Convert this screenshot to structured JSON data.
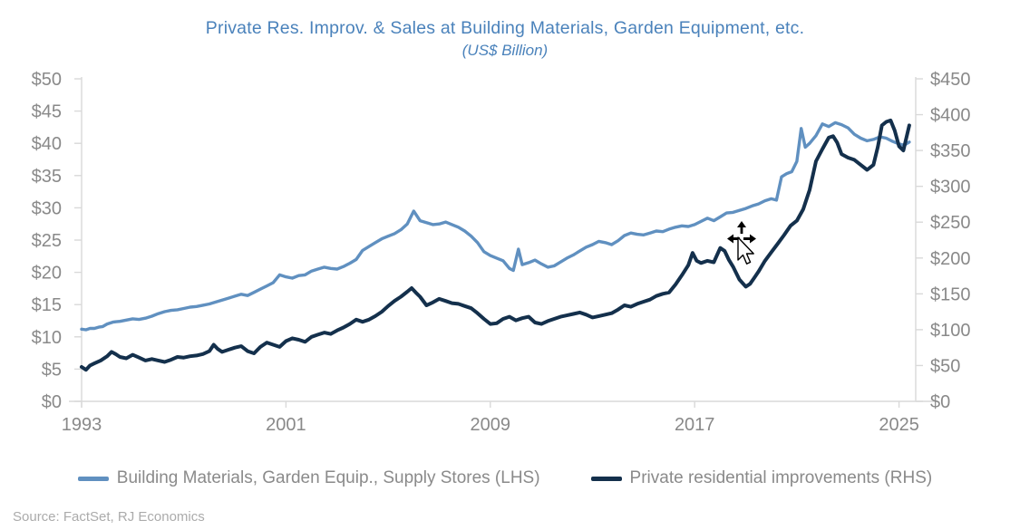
{
  "chart": {
    "title": "Private Res. Improv. & Sales at Building Materials, Garden Equipment, etc.",
    "subtitle": "(US$ Billion)",
    "source": "Source: FactSet, RJ Economics"
  },
  "colors": {
    "title_text": "#4A82BB",
    "axis_line": "#D9D9D9",
    "axis_label": "#898989",
    "legend_text": "#8A8A8A",
    "source_text": "#ABABAB",
    "series_lhs": "#6090C0",
    "series_rhs": "#14304C",
    "background": "#FFFFFF"
  },
  "cursor": {
    "kind": "move-drag-pointer",
    "visible": true
  },
  "chart_data": {
    "type": "line",
    "title": "Private Res. Improv. & Sales at Building Materials, Garden Equipment, etc.",
    "subtitle": "(US$ Billion)",
    "grid": "off",
    "legend_position": "bottom",
    "x_axis": {
      "tick_labels": [
        "1993",
        "2001",
        "2009",
        "2017",
        "2025"
      ],
      "tick_years": [
        1993,
        2001,
        2009,
        2017,
        2025
      ],
      "range": [
        1993,
        2025.7
      ]
    },
    "y_axis_left": {
      "tick_labels": [
        "$0",
        "$5",
        "$10",
        "$15",
        "$20",
        "$25",
        "$30",
        "$35",
        "$40",
        "$45",
        "$50"
      ],
      "tick_values": [
        0,
        5,
        10,
        15,
        20,
        25,
        30,
        35,
        40,
        45,
        50
      ],
      "range": [
        0,
        50
      ]
    },
    "y_axis_right": {
      "tick_labels": [
        "$0",
        "$50",
        "$100",
        "$150",
        "$200",
        "$250",
        "$300",
        "$350",
        "$400",
        "$450"
      ],
      "tick_values": [
        0,
        50,
        100,
        150,
        200,
        250,
        300,
        350,
        400,
        450
      ],
      "range": [
        0,
        450
      ]
    },
    "series": [
      {
        "name": "Building Materials, Garden Equip., Supply Stores (LHS)",
        "axis": "left",
        "color": "#6090C0",
        "points": [
          [
            1993.0,
            11.2
          ],
          [
            1993.17,
            11.1
          ],
          [
            1993.33,
            11.3
          ],
          [
            1993.5,
            11.3
          ],
          [
            1993.67,
            11.5
          ],
          [
            1993.83,
            11.6
          ],
          [
            1994.0,
            12.0
          ],
          [
            1994.25,
            12.3
          ],
          [
            1994.5,
            12.4
          ],
          [
            1994.75,
            12.6
          ],
          [
            1995.0,
            12.8
          ],
          [
            1995.25,
            12.7
          ],
          [
            1995.5,
            12.9
          ],
          [
            1995.75,
            13.2
          ],
          [
            1996.0,
            13.6
          ],
          [
            1996.25,
            13.9
          ],
          [
            1996.5,
            14.1
          ],
          [
            1996.75,
            14.2
          ],
          [
            1997.0,
            14.4
          ],
          [
            1997.25,
            14.6
          ],
          [
            1997.5,
            14.7
          ],
          [
            1997.75,
            14.9
          ],
          [
            1998.0,
            15.1
          ],
          [
            1998.25,
            15.4
          ],
          [
            1998.5,
            15.7
          ],
          [
            1998.75,
            16.0
          ],
          [
            1999.0,
            16.3
          ],
          [
            1999.25,
            16.6
          ],
          [
            1999.5,
            16.4
          ],
          [
            1999.75,
            16.9
          ],
          [
            2000.0,
            17.4
          ],
          [
            2000.25,
            17.9
          ],
          [
            2000.5,
            18.4
          ],
          [
            2000.75,
            19.6
          ],
          [
            2001.0,
            19.3
          ],
          [
            2001.25,
            19.1
          ],
          [
            2001.5,
            19.5
          ],
          [
            2001.75,
            19.6
          ],
          [
            2002.0,
            20.2
          ],
          [
            2002.25,
            20.5
          ],
          [
            2002.5,
            20.8
          ],
          [
            2002.75,
            20.6
          ],
          [
            2003.0,
            20.5
          ],
          [
            2003.25,
            20.9
          ],
          [
            2003.5,
            21.4
          ],
          [
            2003.75,
            22.0
          ],
          [
            2004.0,
            23.4
          ],
          [
            2004.25,
            24.0
          ],
          [
            2004.5,
            24.6
          ],
          [
            2004.75,
            25.2
          ],
          [
            2005.0,
            25.6
          ],
          [
            2005.25,
            26.0
          ],
          [
            2005.5,
            26.6
          ],
          [
            2005.75,
            27.5
          ],
          [
            2006.0,
            29.5
          ],
          [
            2006.1,
            28.9
          ],
          [
            2006.25,
            28.0
          ],
          [
            2006.5,
            27.7
          ],
          [
            2006.75,
            27.4
          ],
          [
            2007.0,
            27.5
          ],
          [
            2007.25,
            27.8
          ],
          [
            2007.5,
            27.4
          ],
          [
            2007.75,
            27.0
          ],
          [
            2008.0,
            26.4
          ],
          [
            2008.25,
            25.6
          ],
          [
            2008.5,
            24.6
          ],
          [
            2008.75,
            23.2
          ],
          [
            2009.0,
            22.6
          ],
          [
            2009.25,
            22.2
          ],
          [
            2009.5,
            21.8
          ],
          [
            2009.75,
            20.6
          ],
          [
            2009.9,
            20.3
          ],
          [
            2010.1,
            23.6
          ],
          [
            2010.25,
            21.2
          ],
          [
            2010.5,
            21.5
          ],
          [
            2010.75,
            21.9
          ],
          [
            2011.0,
            21.3
          ],
          [
            2011.25,
            20.8
          ],
          [
            2011.5,
            21.0
          ],
          [
            2011.75,
            21.6
          ],
          [
            2012.0,
            22.2
          ],
          [
            2012.25,
            22.7
          ],
          [
            2012.5,
            23.3
          ],
          [
            2012.75,
            23.9
          ],
          [
            2013.0,
            24.3
          ],
          [
            2013.25,
            24.8
          ],
          [
            2013.5,
            24.6
          ],
          [
            2013.75,
            24.3
          ],
          [
            2014.0,
            24.9
          ],
          [
            2014.25,
            25.7
          ],
          [
            2014.5,
            26.1
          ],
          [
            2014.75,
            25.9
          ],
          [
            2015.0,
            25.8
          ],
          [
            2015.25,
            26.1
          ],
          [
            2015.5,
            26.4
          ],
          [
            2015.75,
            26.3
          ],
          [
            2016.0,
            26.7
          ],
          [
            2016.25,
            27.0
          ],
          [
            2016.5,
            27.2
          ],
          [
            2016.75,
            27.1
          ],
          [
            2017.0,
            27.4
          ],
          [
            2017.25,
            27.9
          ],
          [
            2017.5,
            28.4
          ],
          [
            2017.75,
            28.0
          ],
          [
            2018.0,
            28.6
          ],
          [
            2018.25,
            29.2
          ],
          [
            2018.5,
            29.3
          ],
          [
            2018.75,
            29.6
          ],
          [
            2019.0,
            29.9
          ],
          [
            2019.25,
            30.3
          ],
          [
            2019.5,
            30.6
          ],
          [
            2019.75,
            31.1
          ],
          [
            2020.0,
            31.4
          ],
          [
            2020.2,
            31.2
          ],
          [
            2020.4,
            34.8
          ],
          [
            2020.6,
            35.3
          ],
          [
            2020.8,
            35.6
          ],
          [
            2021.0,
            37.2
          ],
          [
            2021.17,
            42.3
          ],
          [
            2021.33,
            39.4
          ],
          [
            2021.5,
            40.0
          ],
          [
            2021.75,
            41.2
          ],
          [
            2022.0,
            43.0
          ],
          [
            2022.25,
            42.6
          ],
          [
            2022.5,
            43.2
          ],
          [
            2022.75,
            42.9
          ],
          [
            2023.0,
            42.4
          ],
          [
            2023.25,
            41.4
          ],
          [
            2023.5,
            40.8
          ],
          [
            2023.75,
            40.4
          ],
          [
            2024.0,
            40.6
          ],
          [
            2024.25,
            41.0
          ],
          [
            2024.5,
            40.8
          ],
          [
            2024.75,
            40.3
          ],
          [
            2025.0,
            39.9
          ],
          [
            2025.2,
            39.7
          ],
          [
            2025.4,
            40.2
          ]
        ]
      },
      {
        "name": "Private residential improvements (RHS)",
        "axis": "right",
        "color": "#14304C",
        "points": [
          [
            1993.0,
            48
          ],
          [
            1993.17,
            44
          ],
          [
            1993.33,
            50
          ],
          [
            1993.5,
            53
          ],
          [
            1993.75,
            57
          ],
          [
            1994.0,
            63
          ],
          [
            1994.17,
            69
          ],
          [
            1994.33,
            66
          ],
          [
            1994.5,
            62
          ],
          [
            1994.75,
            60
          ],
          [
            1995.0,
            65
          ],
          [
            1995.25,
            61
          ],
          [
            1995.5,
            57
          ],
          [
            1995.75,
            59
          ],
          [
            1996.0,
            57
          ],
          [
            1996.25,
            55
          ],
          [
            1996.5,
            58
          ],
          [
            1996.75,
            62
          ],
          [
            1997.0,
            61
          ],
          [
            1997.25,
            63
          ],
          [
            1997.5,
            64
          ],
          [
            1997.75,
            66
          ],
          [
            1998.0,
            70
          ],
          [
            1998.17,
            79
          ],
          [
            1998.33,
            73
          ],
          [
            1998.5,
            69
          ],
          [
            1998.75,
            72
          ],
          [
            1999.0,
            75
          ],
          [
            1999.25,
            77
          ],
          [
            1999.5,
            70
          ],
          [
            1999.75,
            67
          ],
          [
            2000.0,
            76
          ],
          [
            2000.25,
            82
          ],
          [
            2000.5,
            79
          ],
          [
            2000.75,
            76
          ],
          [
            2001.0,
            84
          ],
          [
            2001.25,
            88
          ],
          [
            2001.5,
            86
          ],
          [
            2001.75,
            83
          ],
          [
            2002.0,
            90
          ],
          [
            2002.25,
            93
          ],
          [
            2002.5,
            96
          ],
          [
            2002.75,
            94
          ],
          [
            2003.0,
            99
          ],
          [
            2003.25,
            103
          ],
          [
            2003.5,
            108
          ],
          [
            2003.75,
            114
          ],
          [
            2004.0,
            111
          ],
          [
            2004.25,
            114
          ],
          [
            2004.5,
            119
          ],
          [
            2004.75,
            125
          ],
          [
            2005.0,
            133
          ],
          [
            2005.25,
            140
          ],
          [
            2005.5,
            146
          ],
          [
            2005.75,
            153
          ],
          [
            2005.92,
            158
          ],
          [
            2006.08,
            152
          ],
          [
            2006.25,
            146
          ],
          [
            2006.5,
            134
          ],
          [
            2006.75,
            138
          ],
          [
            2007.0,
            143
          ],
          [
            2007.25,
            140
          ],
          [
            2007.5,
            137
          ],
          [
            2007.75,
            136
          ],
          [
            2008.0,
            133
          ],
          [
            2008.25,
            130
          ],
          [
            2008.5,
            123
          ],
          [
            2008.75,
            115
          ],
          [
            2009.0,
            108
          ],
          [
            2009.25,
            109
          ],
          [
            2009.5,
            115
          ],
          [
            2009.75,
            118
          ],
          [
            2010.0,
            113
          ],
          [
            2010.25,
            116
          ],
          [
            2010.5,
            118
          ],
          [
            2010.75,
            110
          ],
          [
            2011.0,
            108
          ],
          [
            2011.25,
            112
          ],
          [
            2011.5,
            115
          ],
          [
            2011.75,
            118
          ],
          [
            2012.0,
            120
          ],
          [
            2012.25,
            122
          ],
          [
            2012.5,
            124
          ],
          [
            2012.75,
            121
          ],
          [
            2013.0,
            117
          ],
          [
            2013.25,
            119
          ],
          [
            2013.5,
            121
          ],
          [
            2013.75,
            123
          ],
          [
            2014.0,
            128
          ],
          [
            2014.25,
            134
          ],
          [
            2014.5,
            132
          ],
          [
            2014.75,
            136
          ],
          [
            2015.0,
            139
          ],
          [
            2015.25,
            142
          ],
          [
            2015.5,
            147
          ],
          [
            2015.75,
            150
          ],
          [
            2016.0,
            152
          ],
          [
            2016.25,
            163
          ],
          [
            2016.5,
            176
          ],
          [
            2016.75,
            190
          ],
          [
            2016.92,
            207
          ],
          [
            2017.08,
            196
          ],
          [
            2017.25,
            193
          ],
          [
            2017.5,
            196
          ],
          [
            2017.75,
            194
          ],
          [
            2018.0,
            214
          ],
          [
            2018.17,
            210
          ],
          [
            2018.33,
            198
          ],
          [
            2018.5,
            188
          ],
          [
            2018.75,
            170
          ],
          [
            2019.0,
            160
          ],
          [
            2019.17,
            164
          ],
          [
            2019.33,
            172
          ],
          [
            2019.5,
            181
          ],
          [
            2019.75,
            196
          ],
          [
            2020.0,
            208
          ],
          [
            2020.25,
            220
          ],
          [
            2020.5,
            232
          ],
          [
            2020.75,
            245
          ],
          [
            2021.0,
            252
          ],
          [
            2021.25,
            268
          ],
          [
            2021.5,
            295
          ],
          [
            2021.75,
            335
          ],
          [
            2022.0,
            352
          ],
          [
            2022.25,
            368
          ],
          [
            2022.42,
            370
          ],
          [
            2022.58,
            361
          ],
          [
            2022.75,
            345
          ],
          [
            2023.0,
            340
          ],
          [
            2023.25,
            337
          ],
          [
            2023.5,
            330
          ],
          [
            2023.75,
            323
          ],
          [
            2024.0,
            330
          ],
          [
            2024.17,
            355
          ],
          [
            2024.33,
            385
          ],
          [
            2024.5,
            390
          ],
          [
            2024.67,
            392
          ],
          [
            2024.83,
            378
          ],
          [
            2025.0,
            356
          ],
          [
            2025.17,
            350
          ],
          [
            2025.4,
            385
          ]
        ]
      }
    ]
  }
}
